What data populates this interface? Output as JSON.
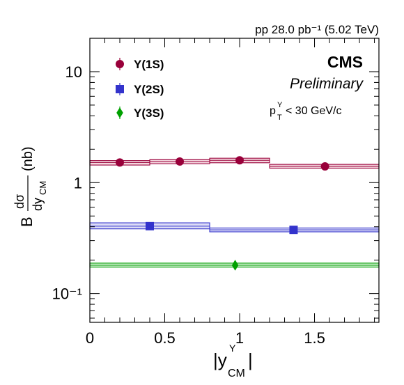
{
  "chart_data": {
    "type": "scatter",
    "header_right": "pp 28.0 pb⁻¹ (5.02 TeV)",
    "experiment": "CMS",
    "status": "Preliminary",
    "cut_label": "pₜᵧ < 30 GeV/c",
    "xlabel": "|yᵧ CM|",
    "ylabel": "B dσ/dy_CM (nb)",
    "xlim": [
      0,
      1.93
    ],
    "ylim": [
      0.055,
      20
    ],
    "y_scale": "log",
    "x_ticks": [
      "0",
      "0.5",
      "1",
      "1.5"
    ],
    "x_tick_values": [
      0,
      0.5,
      1,
      1.5
    ],
    "y_ticks": [
      "10",
      "1",
      "10⁻¹"
    ],
    "y_tick_values": [
      10,
      1,
      0.1
    ],
    "grid": false,
    "legend_position": "top-left",
    "series": [
      {
        "name": "Υ(1S)",
        "color": "#99003a",
        "fill": "#f4d6de",
        "marker": "circle",
        "points": [
          {
            "x": 0.2,
            "y": 1.52,
            "xlo": 0.0,
            "xhi": 0.4,
            "ylo": 1.44,
            "yhi": 1.58
          },
          {
            "x": 0.6,
            "y": 1.55,
            "xlo": 0.4,
            "xhi": 0.8,
            "ylo": 1.48,
            "yhi": 1.61
          },
          {
            "x": 1.0,
            "y": 1.59,
            "xlo": 0.8,
            "xhi": 1.2,
            "ylo": 1.51,
            "yhi": 1.66
          },
          {
            "x": 1.57,
            "y": 1.4,
            "xlo": 1.2,
            "xhi": 1.93,
            "ylo": 1.35,
            "yhi": 1.46
          }
        ]
      },
      {
        "name": "Υ(2S)",
        "color": "#3333cc",
        "fill": "#dcdcf6",
        "marker": "square",
        "points": [
          {
            "x": 0.4,
            "y": 0.405,
            "xlo": 0.0,
            "xhi": 0.8,
            "ylo": 0.383,
            "yhi": 0.434
          },
          {
            "x": 1.36,
            "y": 0.375,
            "xlo": 0.8,
            "xhi": 1.93,
            "ylo": 0.36,
            "yhi": 0.39
          }
        ]
      },
      {
        "name": "Υ(3S)",
        "color": "#00a000",
        "fill": "#d6f0d6",
        "marker": "diamond",
        "points": [
          {
            "x": 0.97,
            "y": 0.18,
            "xlo": 0.0,
            "xhi": 1.93,
            "ylo": 0.173,
            "yhi": 0.188
          }
        ]
      }
    ]
  }
}
